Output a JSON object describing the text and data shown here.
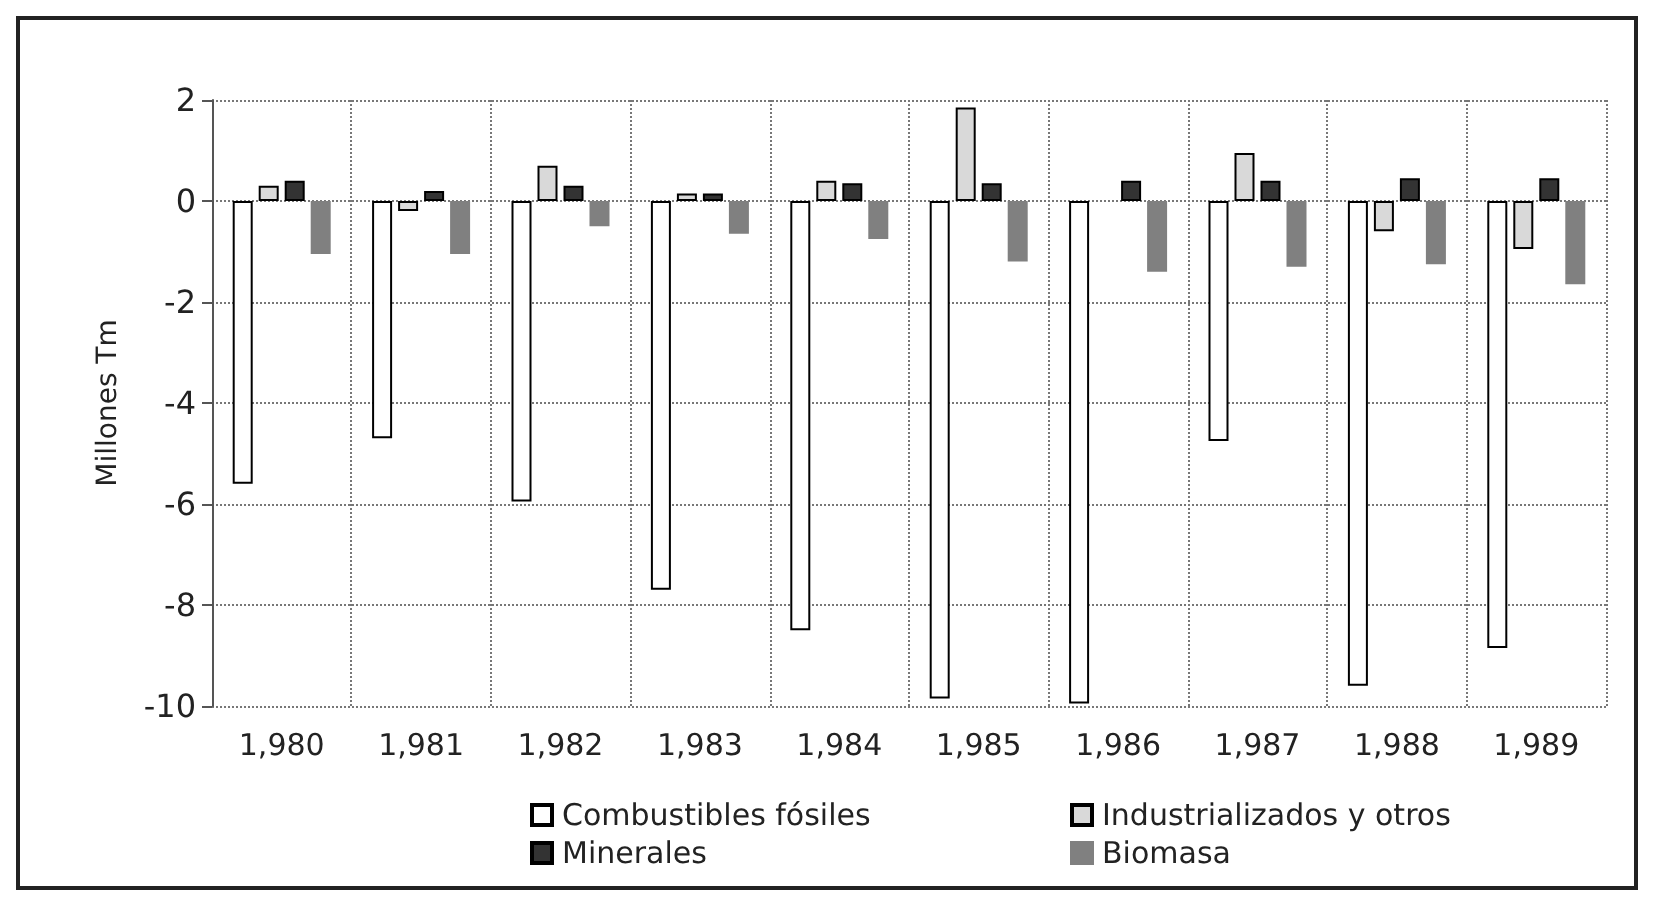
{
  "chart_data": {
    "type": "bar",
    "ylabel": "Millones Tm",
    "categories": [
      "1,980",
      "1,981",
      "1,982",
      "1,983",
      "1,984",
      "1,985",
      "1,986",
      "1,987",
      "1,988",
      "1,989"
    ],
    "series": [
      {
        "name": "Combustibles fósiles",
        "color": "#ffffff",
        "values": [
          -5.6,
          -4.7,
          -5.95,
          -7.7,
          -8.5,
          -9.85,
          -9.95,
          -4.75,
          -9.6,
          -8.85
        ]
      },
      {
        "name": "Industrializados y otros",
        "color": "#d9d9d9",
        "values": [
          0.3,
          -0.2,
          0.7,
          0.15,
          0.4,
          1.85,
          null,
          0.95,
          -0.6,
          -0.95
        ]
      },
      {
        "name": "Minerales",
        "color": "#333333",
        "values": [
          0.4,
          0.2,
          0.3,
          0.15,
          0.35,
          0.35,
          0.4,
          0.4,
          0.45,
          0.45
        ]
      },
      {
        "name": "Biomasa",
        "color": "#808080",
        "values": [
          -1.05,
          -1.05,
          -0.5,
          -0.65,
          -0.75,
          -1.2,
          -1.4,
          -1.3,
          -1.25,
          -1.65
        ]
      }
    ],
    "ylim": [
      -10,
      2
    ],
    "yticks": [
      -10,
      -8,
      -6,
      -4,
      -2,
      0,
      2
    ],
    "grid": true,
    "legend": "bottom"
  }
}
